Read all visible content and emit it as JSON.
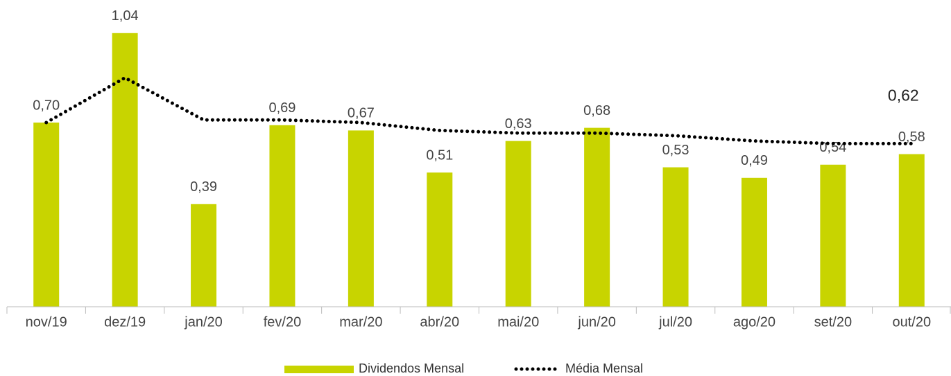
{
  "chart_data": {
    "type": "bar",
    "categories": [
      "nov/19",
      "dez/19",
      "jan/20",
      "fev/20",
      "mar/20",
      "abr/20",
      "mai/20",
      "jun/20",
      "jul/20",
      "ago/20",
      "set/20",
      "out/20"
    ],
    "ylim": [
      0,
      1.1
    ],
    "series": [
      {
        "name": "Dividendos Mensal",
        "type": "bar",
        "color": "#c8d400",
        "values": [
          0.7,
          1.04,
          0.39,
          0.69,
          0.67,
          0.51,
          0.63,
          0.68,
          0.53,
          0.49,
          0.54,
          0.58
        ],
        "value_labels": [
          "0,70",
          "1,04",
          "0,39",
          "0,69",
          "0,67",
          "0,51",
          "0,63",
          "0,68",
          "0,53",
          "0,49",
          "0,54",
          "0,58"
        ]
      },
      {
        "name": "Média Mensal",
        "type": "line",
        "color": "#000000",
        "values": [
          0.7,
          0.87,
          0.71,
          0.71,
          0.7,
          0.67,
          0.66,
          0.66,
          0.65,
          0.63,
          0.62,
          0.62
        ],
        "value_labels": [
          null,
          null,
          null,
          null,
          null,
          null,
          null,
          null,
          null,
          null,
          null,
          "0,62"
        ]
      }
    ]
  }
}
